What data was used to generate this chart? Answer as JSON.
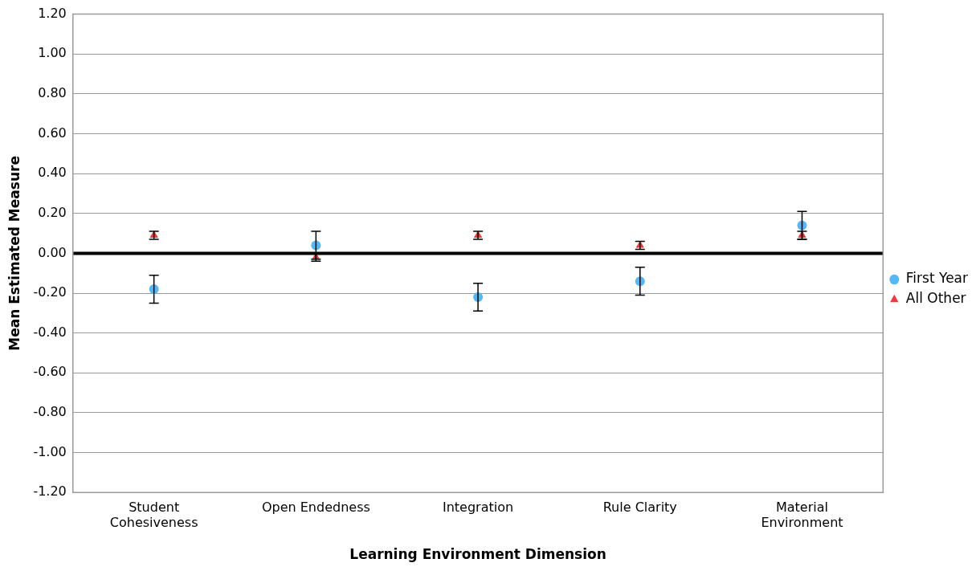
{
  "chart_data": {
    "type": "scatter",
    "xlabel": "Learning Environment Dimension",
    "ylabel": "Mean Estimated Measure",
    "categories": [
      "Student Cohesiveness",
      "Open Endedness",
      "Integration",
      "Rule Clarity",
      "Material Environment"
    ],
    "series": [
      {
        "name": "First Year",
        "color": "#55b8f5",
        "marker": "circle",
        "values": [
          -0.18,
          0.04,
          -0.22,
          -0.14,
          0.14
        ],
        "errors": [
          0.07,
          0.07,
          0.07,
          0.07,
          0.07
        ]
      },
      {
        "name": "All Other",
        "color": "#f03838",
        "marker": "triangle",
        "values": [
          0.09,
          -0.02,
          0.09,
          0.04,
          0.09
        ],
        "errors": [
          0.02,
          0.02,
          0.02,
          0.02,
          0.02
        ]
      }
    ],
    "ylim": [
      -1.2,
      1.2
    ],
    "yticks": [
      {
        "value": -1.2,
        "label": "-1.20"
      },
      {
        "value": -1,
        "label": "-1.00"
      },
      {
        "value": -0.8,
        "label": "-0.80"
      },
      {
        "value": -0.6,
        "label": "-0.60"
      },
      {
        "value": -0.4,
        "label": "-0.40"
      },
      {
        "value": -0.2,
        "label": "-0.20"
      },
      {
        "value": 0,
        "label": "0.00"
      },
      {
        "value": 0.2,
        "label": "0.20"
      },
      {
        "value": 0.4,
        "label": "0.40"
      },
      {
        "value": 0.6,
        "label": "0.60"
      },
      {
        "value": 0.8,
        "label": "0.80"
      },
      {
        "value": 1,
        "label": "1.00"
      },
      {
        "value": 1.2,
        "label": "1.20"
      }
    ],
    "ref_lines": [
      {
        "axis": "y",
        "value": 0,
        "color": "#000000"
      }
    ],
    "grid": "y",
    "legend": "right"
  }
}
